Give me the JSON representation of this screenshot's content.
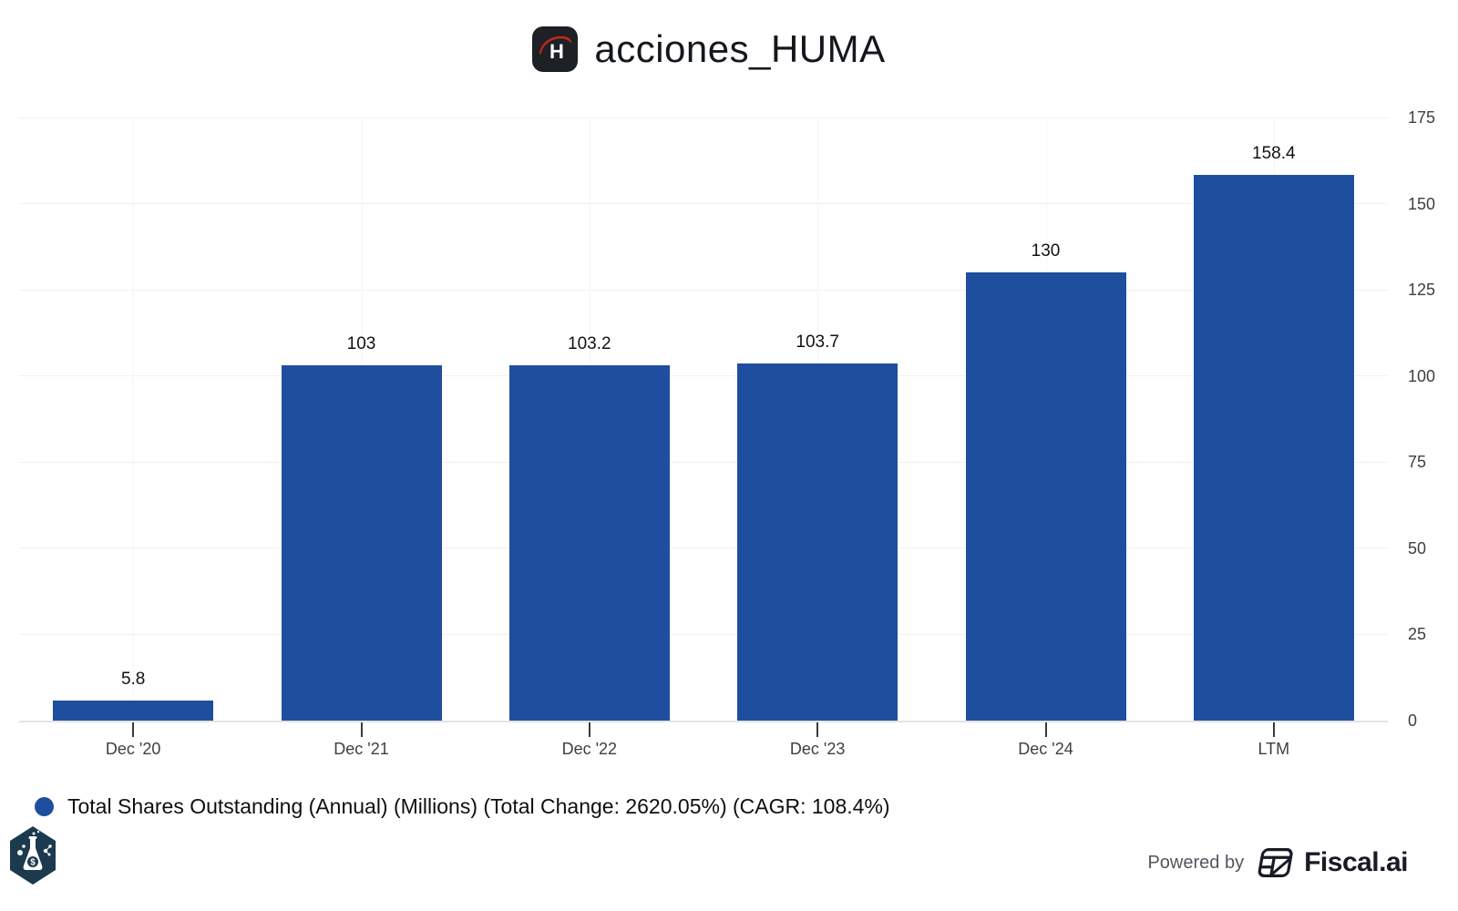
{
  "header": {
    "title": "acciones_HUMA",
    "logo_letter": "H"
  },
  "chart_data": {
    "type": "bar",
    "title": "acciones_HUMA",
    "categories": [
      "Dec '20",
      "Dec '21",
      "Dec '22",
      "Dec '23",
      "Dec '24",
      "LTM"
    ],
    "values": [
      5.8,
      103,
      103.2,
      103.7,
      130,
      158.4
    ],
    "value_labels": [
      "5.8",
      "103",
      "103.2",
      "103.7",
      "130",
      "158.4"
    ],
    "series_name": "Total Shares Outstanding (Annual) (Millions)",
    "total_change": "2620.05%",
    "cagr": "108.4%",
    "ylim": [
      0,
      175
    ],
    "yticks": [
      0,
      25,
      50,
      75,
      100,
      125,
      150,
      175
    ],
    "y_axis_side": "right",
    "grid": true,
    "legend_position": "bottom-left",
    "bar_color": "#1f4e9e"
  },
  "legend": {
    "label": "Total Shares Outstanding (Annual) (Millions) (Total Change: 2620.05%) (CAGR: 108.4%)",
    "marker_color": "#1f4e9e"
  },
  "footer": {
    "powered_by": "Powered by",
    "brand": "Fiscal.ai"
  },
  "colors": {
    "bar": "#1f4e9e",
    "logo_bg": "#1d2024",
    "logo_swoosh": "#c5281c",
    "axis_label": "#3f3f3f",
    "grid_line": "#f1f1f1",
    "axis_line": "#e4e4e4",
    "title_text": "#14171c",
    "badge_hex": "#1c3a4e"
  }
}
